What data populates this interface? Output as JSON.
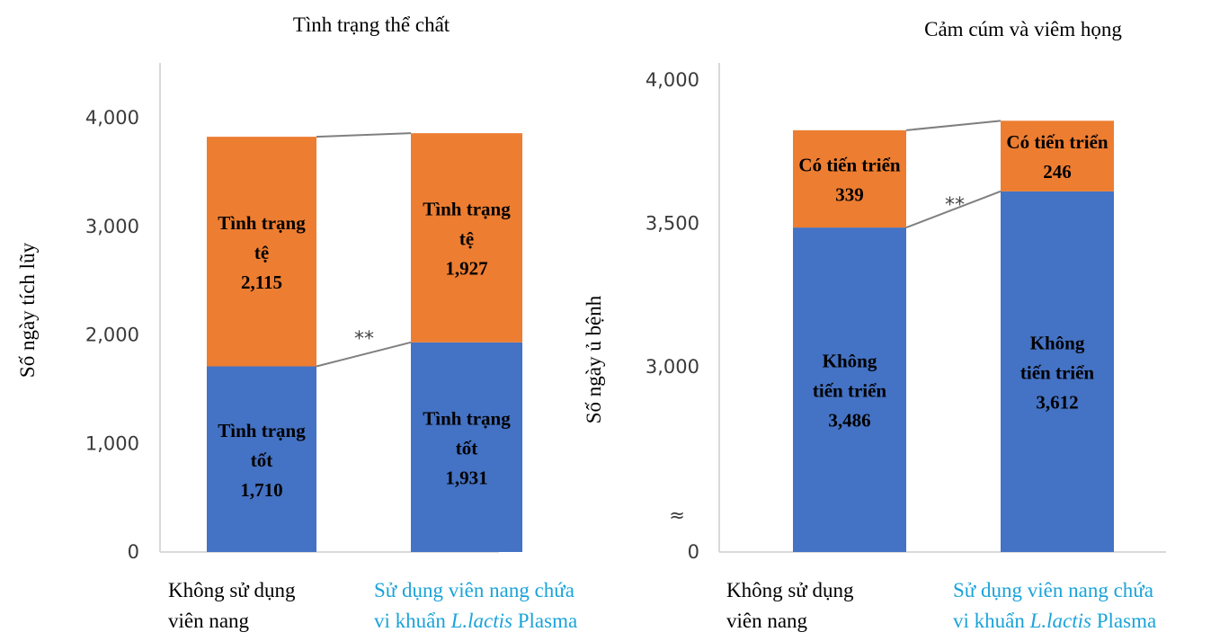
{
  "chart_data": [
    {
      "type": "bar",
      "stacked": true,
      "title": "Tình trạng thể chất",
      "ylabel": "Số ngày tích lũy",
      "ylim": [
        0,
        4400
      ],
      "yticks": [
        "0",
        "1,000",
        "2,000",
        "3,000",
        "4,000"
      ],
      "ytick_values": [
        0,
        1000,
        2000,
        3000,
        4000
      ],
      "categories": [
        {
          "lines": [
            {
              "text": "Không sử dụng"
            },
            {
              "text": "viên nang"
            }
          ],
          "color": "#000000"
        },
        {
          "lines": [
            {
              "text": "Sử dụng viên nang chứa"
            },
            {
              "pre": "vi khuẩn ",
              "em": "L.lactis",
              "post": " Plasma"
            }
          ],
          "color": "#1aa3d9"
        }
      ],
      "series": [
        {
          "values": [
            1710,
            1931
          ],
          "labels": [
            [
              "Tình trạng",
              "tốt",
              "1,710"
            ],
            [
              "Tình trạng",
              "tốt",
              "1,931"
            ]
          ],
          "color": "#4472c4"
        },
        {
          "values": [
            2115,
            1927
          ],
          "labels": [
            [
              "Tình trạng",
              "tệ",
              "2,115"
            ],
            [
              "Tình trạng",
              "tệ",
              "1,927"
            ]
          ],
          "color": "#ed7d31"
        }
      ],
      "significance": "**",
      "axis_break": false,
      "grid": false
    },
    {
      "type": "bar",
      "stacked": true,
      "title": "Cảm cúm và viêm họng",
      "ylabel": "Số ngày ủ bệnh",
      "ylim": [
        0,
        4000
      ],
      "y_break_range": [
        0,
        2700
      ],
      "yticks": [
        "0",
        "3,000",
        "3,500",
        "4,000"
      ],
      "ytick_values": [
        0,
        3000,
        3500,
        4000
      ],
      "categories": [
        {
          "lines": [
            {
              "text": "Không sử dụng"
            },
            {
              "text": "viên nang"
            }
          ],
          "color": "#000000"
        },
        {
          "lines": [
            {
              "text": "Sử dụng viên nang chứa"
            },
            {
              "pre": "vi khuẩn ",
              "em": "L.lactis",
              "post": " Plasma"
            }
          ],
          "color": "#1aa3d9"
        }
      ],
      "series": [
        {
          "values": [
            3486,
            3612
          ],
          "labels": [
            [
              "Không",
              "tiến triển",
              "3,486"
            ],
            [
              "Không",
              "tiến triển",
              "3,612"
            ]
          ],
          "color": "#4472c4"
        },
        {
          "values": [
            339,
            246
          ],
          "labels": [
            [
              "Có tiến triển",
              "339"
            ],
            [
              "Có tiến triển",
              "246"
            ]
          ],
          "color": "#ed7d31"
        }
      ],
      "significance": "**",
      "axis_break": true,
      "break_symbol": "≈",
      "grid": false
    }
  ]
}
